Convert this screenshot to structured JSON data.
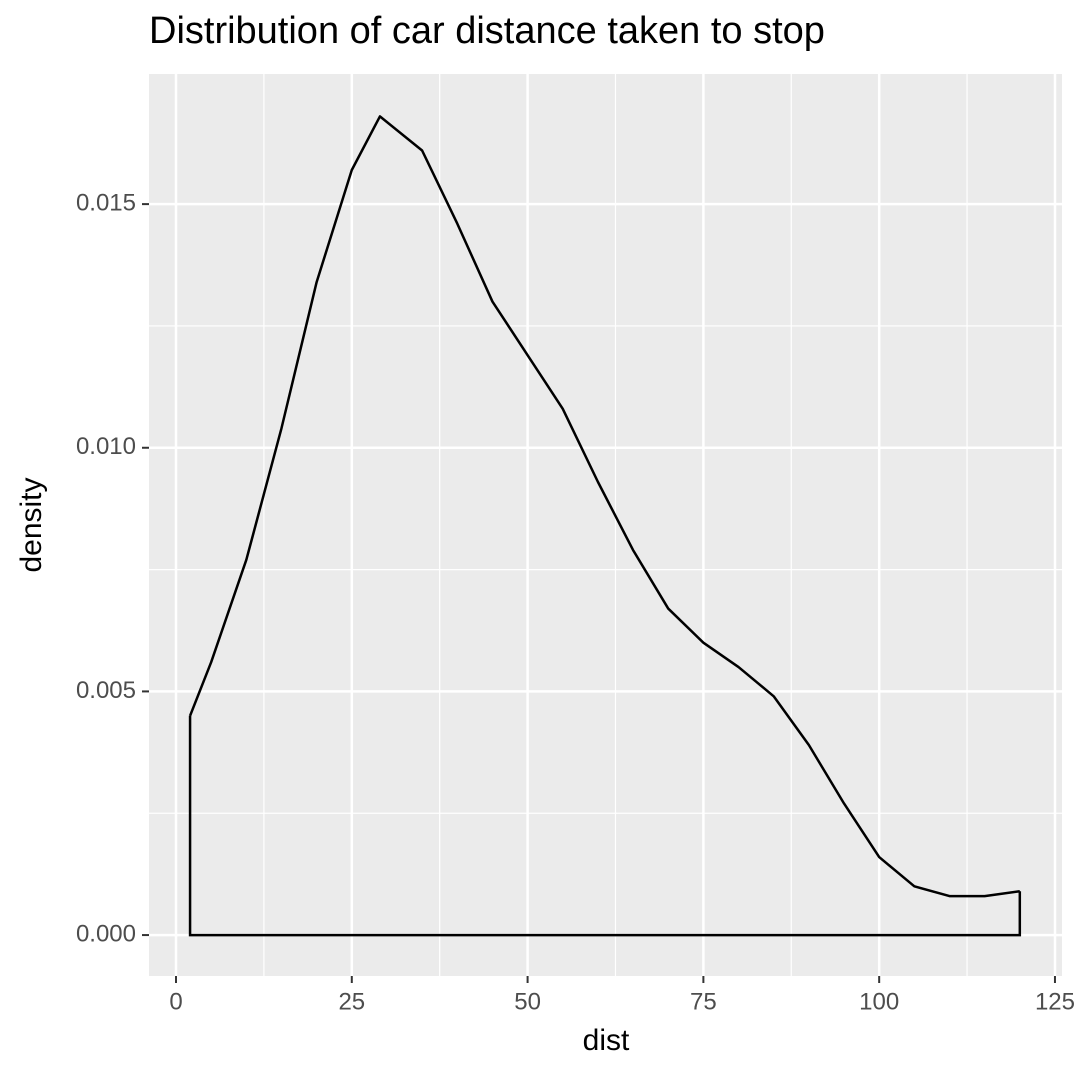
{
  "chart_data": {
    "type": "density",
    "title": "Distribution of car distance taken to stop",
    "x_label": "dist",
    "y_label": "density",
    "x": [
      2,
      5,
      10,
      15,
      20,
      25,
      29,
      35,
      40,
      45,
      50,
      55,
      60,
      65,
      70,
      75,
      80,
      85,
      90,
      95,
      100,
      105,
      110,
      115,
      120
    ],
    "values": [
      0.0045,
      0.0056,
      0.0077,
      0.0104,
      0.0134,
      0.0157,
      0.0168,
      0.0161,
      0.0146,
      0.013,
      0.0119,
      0.0108,
      0.0093,
      0.0079,
      0.0067,
      0.006,
      0.0055,
      0.0049,
      0.0039,
      0.0027,
      0.0016,
      0.001,
      0.0008,
      0.0008,
      0.0009
    ],
    "color": "#000000",
    "xlim": [
      -3.84,
      126.0
    ],
    "ylim": [
      -0.00084,
      0.01767
    ],
    "xticks": [
      0,
      25,
      50,
      75,
      100,
      125
    ],
    "yticks": [
      {
        "value": 0,
        "label": "0.000"
      },
      0.005,
      {
        "value": 0.01,
        "label": "0.010"
      },
      0.015
    ],
    "grid": true
  }
}
